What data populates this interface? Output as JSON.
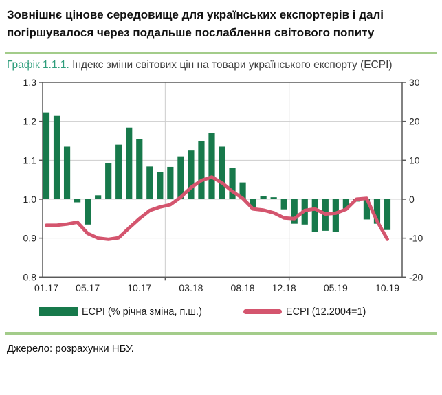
{
  "header": {
    "title": "Зовнішнє цінове середовище для українських експортерів і далі погіршувалося через подальше послаблення світового попиту"
  },
  "caption": {
    "prefix": "Графік 1.1.1.",
    "text": " Індекс  зміни світових цін на товари українського експорту (ECPI)"
  },
  "legend": [
    {
      "label": "ECPI (% річна зміна, п.ш.)",
      "type": "bar"
    },
    {
      "label": "ECPI (12.2004=1)",
      "type": "line"
    }
  ],
  "source": {
    "text": "Джерело: розрахунки НБУ."
  },
  "colors": {
    "bar_green": "#17794b",
    "line_red": "#d4556e",
    "separator_green": "#a3cc8a",
    "caption_green": "#2e9e7c",
    "caption_gray": "#3f3f3f",
    "grid": "#cdcdcd",
    "axis": "#595959",
    "tick_text": "#262626",
    "title_black": "#111111"
  },
  "chart_data": {
    "type": "bar+line combo",
    "title": "Індекс зміни світових цін на товари українського експорту (ECPI)",
    "months": [
      "01.17",
      "02.17",
      "03.17",
      "04.17",
      "05.17",
      "06.17",
      "07.17",
      "08.17",
      "09.17",
      "10.17",
      "11.17",
      "12.17",
      "01.18",
      "02.18",
      "03.18",
      "04.18",
      "05.18",
      "06.18",
      "07.18",
      "08.18",
      "09.18",
      "10.18",
      "11.18",
      "12.18",
      "01.19",
      "02.19",
      "03.19",
      "04.19",
      "05.19",
      "06.19",
      "07.19",
      "08.19",
      "09.19",
      "10.19"
    ],
    "series": [
      {
        "name": "ECPI (% річна зміна, п.ш.)",
        "type": "bar",
        "axis": "right",
        "values": [
          22.3,
          21.4,
          13.5,
          -0.8,
          -6.5,
          1.0,
          9.2,
          14.0,
          18.4,
          15.5,
          8.4,
          7.0,
          8.3,
          11.0,
          12.5,
          15.0,
          17.0,
          13.5,
          8.0,
          4.3,
          -2.5,
          0.7,
          0.5,
          -2.6,
          -6.3,
          -6.5,
          -8.3,
          -8.1,
          -8.3,
          -2.4,
          -0.6,
          -5.2,
          -6.3,
          -7.9
        ]
      },
      {
        "name": "ECPI (12.2004=1)",
        "type": "line",
        "axis": "left",
        "values": [
          0.933,
          0.933,
          0.936,
          0.941,
          0.912,
          0.9,
          0.897,
          0.901,
          0.926,
          0.95,
          0.971,
          0.98,
          0.986,
          1.005,
          1.03,
          1.048,
          1.057,
          1.042,
          1.02,
          1.002,
          0.975,
          0.972,
          0.965,
          0.952,
          0.95,
          0.971,
          0.975,
          0.962,
          0.964,
          0.974,
          1.0,
          1.002,
          0.944,
          0.897
        ]
      }
    ],
    "left_axis": {
      "min": 0.8,
      "max": 1.3,
      "ticks": [
        "1.3",
        "1.2",
        "1.1",
        "1.0",
        "0.9",
        "0.8"
      ]
    },
    "right_axis": {
      "min": -20,
      "max": 30,
      "ticks": [
        "30",
        "20",
        "10",
        "0",
        "-10",
        "-20"
      ]
    },
    "x_tick_labels": [
      "01.17",
      "05.17",
      "10.17",
      "03.18",
      "08.18",
      "12.18",
      "05.19",
      "10.19"
    ],
    "grid": "horizontal at 0.9–1.2; vertical at year boundaries",
    "legend_position": "bottom"
  }
}
